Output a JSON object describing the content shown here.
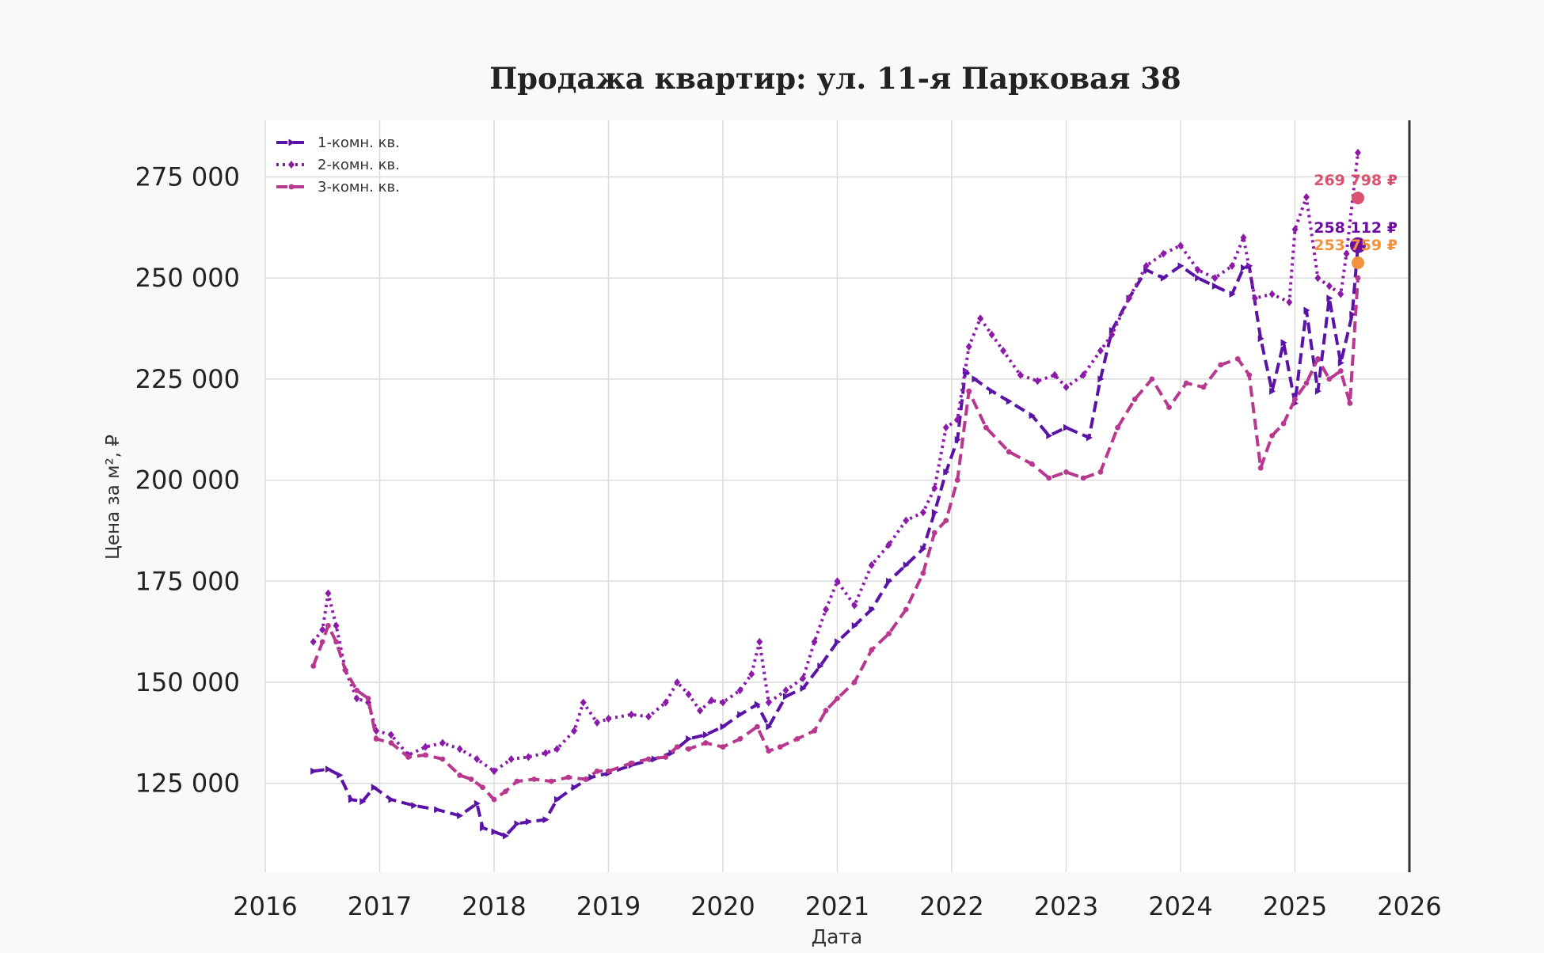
{
  "chart_data": {
    "type": "line",
    "title": "Продажа квартир: ул. 11-я Парковая 38",
    "xlabel": "Дата",
    "ylabel": "Цена за м², ₽",
    "xlim": [
      2016,
      2026
    ],
    "ylim": [
      103000,
      289000
    ],
    "grid": true,
    "legend_position": "top-left",
    "x_ticks": [
      2016,
      2017,
      2018,
      2019,
      2020,
      2021,
      2022,
      2023,
      2024,
      2025,
      2026
    ],
    "x_tick_labels": [
      "2016",
      "2017",
      "2018",
      "2019",
      "2020",
      "2021",
      "2022",
      "2023",
      "2024",
      "2025",
      "2026"
    ],
    "y_ticks": [
      125000,
      150000,
      175000,
      200000,
      225000,
      250000,
      275000
    ],
    "y_tick_labels": [
      "125 000",
      "150 000",
      "175 000",
      "200 000",
      "225 000",
      "250 000",
      "275 000"
    ],
    "series": [
      {
        "name": "1-комн. кв.",
        "color": "#5a13a6",
        "dash": "dashed",
        "marker": "triangle-right",
        "x": [
          2016.42,
          2016.55,
          2016.65,
          2016.75,
          2016.85,
          2016.95,
          2017.1,
          2017.3,
          2017.5,
          2017.7,
          2017.85,
          2017.9,
          2018.0,
          2018.1,
          2018.2,
          2018.3,
          2018.45,
          2018.55,
          2018.7,
          2018.85,
          2019.0,
          2019.2,
          2019.4,
          2019.55,
          2019.7,
          2019.85,
          2020.0,
          2020.15,
          2020.3,
          2020.4,
          2020.55,
          2020.7,
          2020.85,
          2021.0,
          2021.15,
          2021.3,
          2021.45,
          2021.6,
          2021.75,
          2021.85,
          2021.95,
          2022.05,
          2022.12,
          2022.2,
          2022.35,
          2022.5,
          2022.7,
          2022.85,
          2023.0,
          2023.2,
          2023.3,
          2023.4,
          2023.55,
          2023.7,
          2023.85,
          2024.0,
          2024.15,
          2024.3,
          2024.45,
          2024.55,
          2024.6,
          2024.7,
          2024.8,
          2024.9,
          2025.0,
          2025.1,
          2025.2,
          2025.3,
          2025.4,
          2025.5,
          2025.55
        ],
        "y": [
          128000,
          128500,
          127000,
          121000,
          120500,
          124000,
          121000,
          119500,
          118500,
          117000,
          120000,
          114000,
          113000,
          112000,
          115000,
          115500,
          116000,
          121000,
          124000,
          126500,
          127500,
          129500,
          131000,
          132500,
          136000,
          137000,
          139000,
          142000,
          144500,
          139000,
          146500,
          148500,
          154000,
          160000,
          164000,
          168000,
          175000,
          179000,
          183000,
          192000,
          202000,
          210000,
          227000,
          225000,
          222000,
          219500,
          216000,
          211000,
          213000,
          210500,
          225000,
          237000,
          245000,
          252000,
          250000,
          253000,
          250000,
          248000,
          246000,
          252500,
          253000,
          235000,
          222000,
          234000,
          219000,
          242000,
          222000,
          245000,
          229000,
          241000,
          258000
        ]
      },
      {
        "name": "2-комн. кв.",
        "color": "#8b1aa8",
        "dash": "dotted",
        "marker": "diamond",
        "x": [
          2016.42,
          2016.5,
          2016.55,
          2016.62,
          2016.7,
          2016.8,
          2016.9,
          2016.97,
          2017.1,
          2017.25,
          2017.4,
          2017.55,
          2017.7,
          2017.85,
          2018.0,
          2018.15,
          2018.3,
          2018.45,
          2018.55,
          2018.7,
          2018.78,
          2018.9,
          2019.0,
          2019.2,
          2019.35,
          2019.5,
          2019.6,
          2019.7,
          2019.8,
          2019.9,
          2020.0,
          2020.15,
          2020.25,
          2020.32,
          2020.4,
          2020.55,
          2020.7,
          2020.8,
          2020.9,
          2021.0,
          2021.15,
          2021.3,
          2021.45,
          2021.6,
          2021.75,
          2021.85,
          2021.95,
          2022.05,
          2022.15,
          2022.25,
          2022.35,
          2022.45,
          2022.6,
          2022.75,
          2022.9,
          2023.0,
          2023.15,
          2023.3,
          2023.4,
          2023.55,
          2023.7,
          2023.85,
          2024.0,
          2024.15,
          2024.3,
          2024.45,
          2024.55,
          2024.65,
          2024.8,
          2024.95,
          2025.0,
          2025.1,
          2025.2,
          2025.3,
          2025.4,
          2025.45,
          2025.55
        ],
        "y": [
          160000,
          163000,
          172000,
          164000,
          153000,
          146000,
          145000,
          138000,
          137000,
          132000,
          134000,
          135000,
          133500,
          131000,
          128000,
          131000,
          131500,
          132500,
          133500,
          138000,
          145000,
          140000,
          141000,
          142000,
          141500,
          145000,
          150000,
          147000,
          143000,
          145500,
          145000,
          148000,
          152000,
          160000,
          145000,
          148000,
          151000,
          160000,
          168000,
          175000,
          169000,
          179000,
          184000,
          190000,
          192000,
          198000,
          213000,
          215000,
          233000,
          240000,
          236000,
          232000,
          226000,
          224500,
          226000,
          223000,
          226000,
          232000,
          236000,
          245000,
          253000,
          256000,
          258000,
          252000,
          250000,
          253000,
          260000,
          245000,
          246000,
          244000,
          262000,
          270000,
          250000,
          248000,
          246000,
          256000,
          281000
        ]
      },
      {
        "name": "3-комн. кв.",
        "color": "#b8378f",
        "dash": "dashed",
        "marker": "circle",
        "x": [
          2016.42,
          2016.5,
          2016.55,
          2016.62,
          2016.7,
          2016.8,
          2016.9,
          2016.97,
          2017.1,
          2017.25,
          2017.4,
          2017.55,
          2017.7,
          2017.8,
          2017.9,
          2018.0,
          2018.1,
          2018.2,
          2018.35,
          2018.5,
          2018.65,
          2018.8,
          2018.9,
          2019.0,
          2019.2,
          2019.35,
          2019.5,
          2019.6,
          2019.7,
          2019.85,
          2020.0,
          2020.15,
          2020.3,
          2020.4,
          2020.5,
          2020.65,
          2020.8,
          2020.9,
          2021.0,
          2021.15,
          2021.3,
          2021.45,
          2021.6,
          2021.75,
          2021.85,
          2021.95,
          2022.05,
          2022.15,
          2022.3,
          2022.5,
          2022.7,
          2022.85,
          2023.0,
          2023.15,
          2023.3,
          2023.45,
          2023.6,
          2023.75,
          2023.9,
          2024.05,
          2024.2,
          2024.35,
          2024.5,
          2024.6,
          2024.7,
          2024.8,
          2024.9,
          2025.0,
          2025.1,
          2025.2,
          2025.3,
          2025.4,
          2025.48,
          2025.55
        ],
        "y": [
          154000,
          160000,
          164000,
          160000,
          153000,
          148000,
          146000,
          136000,
          135000,
          131500,
          132000,
          131000,
          127000,
          126000,
          124000,
          121000,
          123000,
          125500,
          126000,
          125500,
          126500,
          126000,
          128000,
          128000,
          130000,
          131000,
          131500,
          134000,
          133500,
          135000,
          134000,
          136000,
          139000,
          133000,
          134000,
          136000,
          138000,
          143000,
          146000,
          150000,
          158000,
          162000,
          168000,
          177000,
          187000,
          190000,
          200000,
          222000,
          213000,
          207000,
          204000,
          200500,
          202000,
          200500,
          202000,
          213000,
          220000,
          225000,
          218000,
          224000,
          223000,
          228500,
          230000,
          226000,
          203000,
          211000,
          214000,
          220000,
          224000,
          230000,
          225000,
          227000,
          219000,
          250000
        ]
      }
    ],
    "end_markers": [
      {
        "label": "269 798 ₽",
        "value": 269798,
        "x": 2025.55,
        "color": "#d9536e"
      },
      {
        "label": "258 112 ₽",
        "value": 258112,
        "x": 2025.55,
        "color": "#6e0fa1"
      },
      {
        "label": "253 759 ₽",
        "value": 253759,
        "x": 2025.55,
        "color": "#f4913c"
      }
    ]
  }
}
